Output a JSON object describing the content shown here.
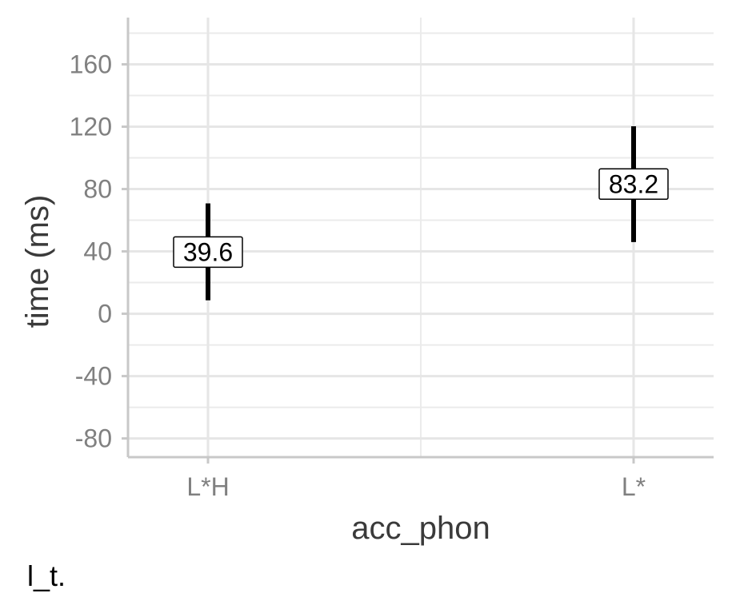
{
  "chart_data": {
    "type": "errorbar",
    "xlabel": "acc_phon",
    "ylabel": "time (ms)",
    "categories": [
      "L*H",
      "L*"
    ],
    "points": [
      {
        "category": "L*H",
        "value": 39.6,
        "label": "39.6",
        "lower": 8.6,
        "upper": 70.8
      },
      {
        "category": "L*",
        "value": 83.2,
        "label": "83.2",
        "lower": 46.0,
        "upper": 120.3
      }
    ],
    "yticks": [
      -80,
      -40,
      0,
      40,
      80,
      120,
      160
    ],
    "ytick_labels": [
      "-80",
      "-40",
      "0",
      "40",
      "80",
      "120",
      "160"
    ],
    "ylim": [
      -92,
      190
    ],
    "grid": true
  },
  "caption": "l_t."
}
